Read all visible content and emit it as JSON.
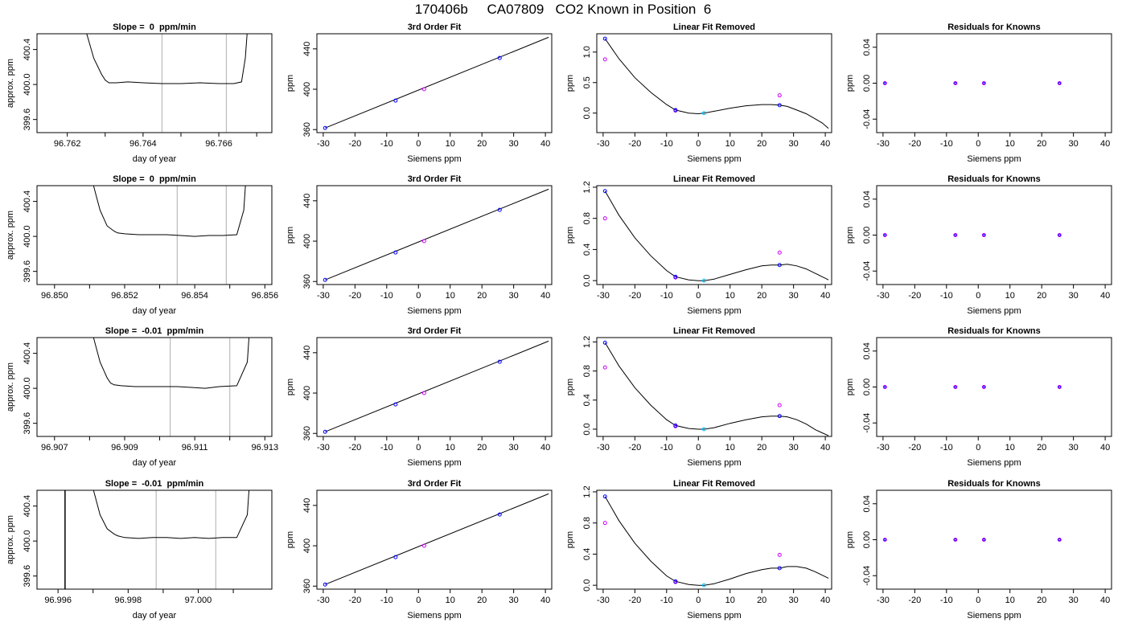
{
  "figure": {
    "title": "170406b     CA07809   CO2 Known in Position  6"
  },
  "colors": {
    "curve": "#000000",
    "known_point": "#0000ff",
    "raw_point": "#cc00ff",
    "center_point": "#00bfff",
    "marker_line": "#bbbbbb",
    "frame": "#000000"
  },
  "chart_data": [
    {
      "panel": "trace",
      "row": 1,
      "type": "line",
      "title": "Slope =  0  ppm/min",
      "xlabel": "day of year",
      "ylabel": "approx. ppm",
      "xlim": [
        96.7612,
        96.7674
      ],
      "ylim": [
        399.45,
        400.58
      ],
      "xticks": [
        "96.762",
        "96.764",
        "96.766"
      ],
      "yticks": [
        "399.6",
        "400.0",
        "400.4"
      ],
      "markers": [
        96.7645,
        96.7662
      ],
      "edge_line": null,
      "x": [
        96.7625,
        96.7627,
        96.7629,
        96.763,
        96.7631,
        96.7633,
        96.7636,
        96.764,
        96.7645,
        96.765,
        96.7655,
        96.766,
        96.7664,
        96.7666,
        96.7667,
        96.76675
      ],
      "y": [
        400.6,
        400.3,
        400.12,
        400.05,
        400.02,
        400.02,
        400.03,
        400.02,
        400.01,
        400.01,
        400.02,
        400.01,
        400.01,
        400.03,
        400.3,
        400.6
      ]
    },
    {
      "panel": "fit",
      "row": 1,
      "type": "line",
      "title": "3rd Order Fit",
      "xlabel": "Siemens ppm",
      "ylabel": "ppm",
      "xlim": [
        -32,
        42
      ],
      "ylim": [
        357,
        455
      ],
      "xticks": [
        "-30",
        "-20",
        "-10",
        "0",
        "10",
        "20",
        "30",
        "40"
      ],
      "yticks": [
        "360",
        "400",
        "440"
      ],
      "curve": {
        "x": [
          -29.4,
          41
        ],
        "y": [
          361.6,
          451.5
        ]
      },
      "points": {
        "x": [
          -29.4,
          -7.2,
          1.8,
          25.6
        ],
        "y": [
          361.6,
          388.8,
          400.0,
          431.0
        ]
      }
    },
    {
      "panel": "linear",
      "row": 1,
      "type": "line",
      "title": "Linear Fit Removed",
      "xlabel": "Siemens ppm",
      "ylabel": "ppm",
      "xlim": [
        -32,
        42
      ],
      "ylim": [
        -0.32,
        1.3
      ],
      "xticks": [
        "-30",
        "-20",
        "-10",
        "0",
        "10",
        "20",
        "30",
        "40"
      ],
      "yticks": [
        "0.0",
        "0.5",
        "1.0"
      ],
      "curve_x": [
        -29.4,
        -25,
        -20,
        -15,
        -10,
        -7.2,
        -3,
        0,
        1.8,
        5,
        10,
        15,
        20,
        23,
        25.6,
        28,
        31,
        34,
        37,
        39,
        41
      ],
      "curve_y": [
        1.22,
        0.89,
        0.58,
        0.34,
        0.14,
        0.05,
        0.0,
        -0.01,
        0.0,
        0.03,
        0.08,
        0.12,
        0.14,
        0.14,
        0.13,
        0.11,
        0.05,
        -0.01,
        -0.1,
        -0.16,
        -0.25
      ],
      "known_points": {
        "x": [
          -29.4,
          -7.2,
          25.6
        ],
        "y": [
          1.22,
          0.05,
          0.13
        ]
      },
      "center_point": {
        "x": [
          1.8
        ],
        "y": [
          0.0
        ]
      },
      "raw_points": {
        "x": [
          -29.4,
          -7.2,
          25.6
        ],
        "y": [
          0.88,
          0.04,
          0.29
        ]
      }
    },
    {
      "panel": "residuals",
      "row": 1,
      "type": "scatter",
      "title": "Residuals for Knowns",
      "xlabel": "Siemens ppm",
      "ylabel": "ppm",
      "xlim": [
        -32,
        42
      ],
      "ylim": [
        -0.055,
        0.055
      ],
      "xticks": [
        "-30",
        "-20",
        "-10",
        "0",
        "10",
        "20",
        "30",
        "40"
      ],
      "yticks": [
        "-0.04",
        "0.00",
        "0.04"
      ],
      "points": {
        "x": [
          -29.4,
          -7.2,
          1.8,
          25.6
        ],
        "y": [
          0,
          0,
          0,
          0
        ]
      }
    },
    {
      "panel": "trace",
      "row": 2,
      "type": "line",
      "title": "Slope =  0  ppm/min",
      "xlabel": "day of year",
      "ylabel": "approx. ppm",
      "xlim": [
        96.8495,
        96.8562
      ],
      "ylim": [
        399.45,
        400.58
      ],
      "xticks": [
        "96.850",
        "96.852",
        "96.854",
        "96.856"
      ],
      "yticks": [
        "399.6",
        "400.0",
        "400.4"
      ],
      "markers": [
        96.8535,
        96.8549
      ],
      "edge_line": null,
      "x": [
        96.8511,
        96.8513,
        96.8515,
        96.8517,
        96.8518,
        96.852,
        96.8524,
        96.8528,
        96.8532,
        96.8536,
        96.854,
        96.8544,
        96.8548,
        96.8552,
        96.8554,
        96.85545
      ],
      "y": [
        400.6,
        400.3,
        400.12,
        400.06,
        400.04,
        400.03,
        400.02,
        400.02,
        400.02,
        400.01,
        400.0,
        400.01,
        400.01,
        400.02,
        400.3,
        400.6
      ]
    },
    {
      "panel": "fit",
      "row": 2,
      "type": "line",
      "title": "3rd Order Fit",
      "xlabel": "Siemens ppm",
      "ylabel": "ppm",
      "xlim": [
        -32,
        42
      ],
      "ylim": [
        357,
        455
      ],
      "xticks": [
        "-30",
        "-20",
        "-10",
        "0",
        "10",
        "20",
        "30",
        "40"
      ],
      "yticks": [
        "360",
        "400",
        "440"
      ],
      "curve": {
        "x": [
          -29.4,
          41
        ],
        "y": [
          361.6,
          451.5
        ]
      },
      "points": {
        "x": [
          -29.4,
          -7.2,
          1.8,
          25.6
        ],
        "y": [
          361.6,
          388.8,
          400.0,
          431.0
        ]
      }
    },
    {
      "panel": "linear",
      "row": 2,
      "type": "line",
      "title": "Linear Fit Removed",
      "xlabel": "Siemens ppm",
      "ylabel": "ppm",
      "xlim": [
        -32,
        42
      ],
      "ylim": [
        -0.05,
        1.22
      ],
      "xticks": [
        "-30",
        "-20",
        "-10",
        "0",
        "10",
        "20",
        "30",
        "40"
      ],
      "yticks": [
        "0.0",
        "0.4",
        "0.8",
        "1.2"
      ],
      "curve_x": [
        -29.4,
        -25,
        -20,
        -15,
        -10,
        -7.2,
        -3,
        0,
        1.8,
        5,
        10,
        15,
        20,
        23,
        25.6,
        28,
        31,
        34,
        37,
        39,
        41
      ],
      "curve_y": [
        1.15,
        0.84,
        0.55,
        0.32,
        0.13,
        0.05,
        0.01,
        0.0,
        0.0,
        0.02,
        0.08,
        0.14,
        0.19,
        0.2,
        0.2,
        0.21,
        0.19,
        0.15,
        0.09,
        0.05,
        0.01
      ],
      "known_points": {
        "x": [
          -29.4,
          -7.2,
          25.6
        ],
        "y": [
          1.15,
          0.05,
          0.2
        ]
      },
      "center_point": {
        "x": [
          1.8
        ],
        "y": [
          0.0
        ]
      },
      "raw_points": {
        "x": [
          -29.4,
          -7.2,
          25.6
        ],
        "y": [
          0.8,
          0.04,
          0.36
        ]
      }
    },
    {
      "panel": "residuals",
      "row": 2,
      "type": "scatter",
      "title": "Residuals for Knowns",
      "xlabel": "Siemens ppm",
      "ylabel": "ppm",
      "xlim": [
        -32,
        42
      ],
      "ylim": [
        -0.055,
        0.055
      ],
      "xticks": [
        "-30",
        "-20",
        "-10",
        "0",
        "10",
        "20",
        "30",
        "40"
      ],
      "yticks": [
        "-0.04",
        "0.00",
        "0.04"
      ],
      "points": {
        "x": [
          -29.4,
          -7.2,
          1.8,
          25.6
        ],
        "y": [
          0,
          0,
          0,
          0
        ]
      }
    },
    {
      "panel": "trace",
      "row": 3,
      "type": "line",
      "title": "Slope =  -0.01  ppm/min",
      "xlabel": "day of year",
      "ylabel": "approx. ppm",
      "xlim": [
        96.9065,
        96.9132
      ],
      "ylim": [
        399.45,
        400.58
      ],
      "xticks": [
        "96.907",
        "96.909",
        "96.911",
        "96.913"
      ],
      "yticks": [
        "399.6",
        "400.0",
        "400.4"
      ],
      "markers": [
        96.9103,
        96.912
      ],
      "edge_line": null,
      "x": [
        96.9081,
        96.9083,
        96.9085,
        96.9086,
        96.9087,
        96.9089,
        96.9093,
        96.9097,
        96.9101,
        96.9105,
        96.9109,
        96.9113,
        96.9117,
        96.9122,
        96.9125,
        96.91255
      ],
      "y": [
        400.6,
        400.3,
        400.12,
        400.06,
        400.04,
        400.03,
        400.02,
        400.02,
        400.02,
        400.02,
        400.01,
        400.0,
        400.02,
        400.03,
        400.3,
        400.6
      ]
    },
    {
      "panel": "fit",
      "row": 3,
      "type": "line",
      "title": "3rd Order Fit",
      "xlabel": "Siemens ppm",
      "ylabel": "ppm",
      "xlim": [
        -32,
        42
      ],
      "ylim": [
        357,
        455
      ],
      "xticks": [
        "-30",
        "-20",
        "-10",
        "0",
        "10",
        "20",
        "30",
        "40"
      ],
      "yticks": [
        "360",
        "400",
        "440"
      ],
      "curve": {
        "x": [
          -29.4,
          41
        ],
        "y": [
          361.6,
          451.5
        ]
      },
      "points": {
        "x": [
          -29.4,
          -7.2,
          1.8,
          25.6
        ],
        "y": [
          361.6,
          388.8,
          400.0,
          431.0
        ]
      }
    },
    {
      "panel": "linear",
      "row": 3,
      "type": "line",
      "title": "Linear Fit Removed",
      "xlabel": "Siemens ppm",
      "ylabel": "ppm",
      "xlim": [
        -32,
        42
      ],
      "ylim": [
        -0.1,
        1.26
      ],
      "xticks": [
        "-30",
        "-20",
        "-10",
        "0",
        "10",
        "20",
        "30",
        "40"
      ],
      "yticks": [
        "0.0",
        "0.4",
        "0.8",
        "1.2"
      ],
      "curve_x": [
        -29.4,
        -25,
        -20,
        -15,
        -10,
        -7.2,
        -3,
        0,
        1.8,
        5,
        10,
        15,
        20,
        23,
        25.6,
        28,
        31,
        34,
        37,
        39,
        41
      ],
      "curve_y": [
        1.19,
        0.87,
        0.57,
        0.33,
        0.13,
        0.05,
        0.01,
        0.0,
        0.0,
        0.02,
        0.08,
        0.13,
        0.17,
        0.18,
        0.18,
        0.17,
        0.13,
        0.07,
        -0.01,
        -0.05,
        -0.09
      ],
      "known_points": {
        "x": [
          -29.4,
          -7.2,
          25.6
        ],
        "y": [
          1.19,
          0.05,
          0.18
        ]
      },
      "center_point": {
        "x": [
          1.8
        ],
        "y": [
          0.0
        ]
      },
      "raw_points": {
        "x": [
          -29.4,
          -7.2,
          25.6
        ],
        "y": [
          0.85,
          0.04,
          0.33
        ]
      }
    },
    {
      "panel": "residuals",
      "row": 3,
      "type": "scatter",
      "title": "Residuals for Knowns",
      "xlabel": "Siemens ppm",
      "ylabel": "ppm",
      "xlim": [
        -32,
        42
      ],
      "ylim": [
        -0.055,
        0.055
      ],
      "xticks": [
        "-30",
        "-20",
        "-10",
        "0",
        "10",
        "20",
        "30",
        "40"
      ],
      "yticks": [
        "-0.04",
        "0.00",
        "0.04"
      ],
      "points": {
        "x": [
          -29.4,
          -7.2,
          1.8,
          25.6
        ],
        "y": [
          0,
          0,
          0,
          0
        ]
      }
    },
    {
      "panel": "trace",
      "row": 4,
      "type": "line",
      "title": "Slope =  -0.01  ppm/min",
      "xlabel": "day of year",
      "ylabel": "approx. ppm",
      "xlim": [
        96.9954,
        97.0021
      ],
      "ylim": [
        399.45,
        400.58
      ],
      "xticks": [
        "96.996",
        "96.998",
        "97.000"
      ],
      "yticks": [
        "399.6",
        "400.0",
        "400.4"
      ],
      "markers": [
        96.9988,
        97.0005
      ],
      "edge_line": 96.9962,
      "x": [
        96.997,
        96.9972,
        96.9974,
        96.9976,
        96.9977,
        96.9979,
        96.9983,
        96.9987,
        96.9991,
        96.9995,
        96.9999,
        97.0003,
        97.0007,
        97.0011,
        97.0014,
        97.00145
      ],
      "y": [
        400.6,
        400.3,
        400.14,
        400.08,
        400.06,
        400.04,
        400.03,
        400.04,
        400.04,
        400.03,
        400.04,
        400.03,
        400.04,
        400.04,
        400.3,
        400.6
      ]
    },
    {
      "panel": "fit",
      "row": 4,
      "type": "line",
      "title": "3rd Order Fit",
      "xlabel": "Siemens ppm",
      "ylabel": "ppm",
      "xlim": [
        -32,
        42
      ],
      "ylim": [
        357,
        455
      ],
      "xticks": [
        "-30",
        "-20",
        "-10",
        "0",
        "10",
        "20",
        "30",
        "40"
      ],
      "yticks": [
        "360",
        "400",
        "440"
      ],
      "curve": {
        "x": [
          -29.4,
          41
        ],
        "y": [
          361.6,
          451.5
        ]
      },
      "points": {
        "x": [
          -29.4,
          -7.2,
          1.8,
          25.6
        ],
        "y": [
          361.6,
          388.8,
          400.0,
          431.0
        ]
      }
    },
    {
      "panel": "linear",
      "row": 4,
      "type": "line",
      "title": "Linear Fit Removed",
      "xlabel": "Siemens ppm",
      "ylabel": "ppm",
      "xlim": [
        -32,
        42
      ],
      "ylim": [
        -0.05,
        1.22
      ],
      "xticks": [
        "-30",
        "-20",
        "-10",
        "0",
        "10",
        "20",
        "30",
        "40"
      ],
      "yticks": [
        "0.0",
        "0.4",
        "0.8",
        "1.2"
      ],
      "curve_x": [
        -29.4,
        -25,
        -20,
        -15,
        -10,
        -7.2,
        -3,
        0,
        1.8,
        5,
        10,
        15,
        20,
        23,
        25.6,
        28,
        31,
        34,
        37,
        39,
        41
      ],
      "curve_y": [
        1.14,
        0.83,
        0.54,
        0.31,
        0.12,
        0.05,
        0.01,
        0.0,
        0.0,
        0.02,
        0.08,
        0.15,
        0.2,
        0.22,
        0.22,
        0.24,
        0.24,
        0.22,
        0.17,
        0.13,
        0.09
      ],
      "known_points": {
        "x": [
          -29.4,
          -7.2,
          25.6
        ],
        "y": [
          1.14,
          0.05,
          0.22
        ]
      },
      "center_point": {
        "x": [
          1.8
        ],
        "y": [
          0.0
        ]
      },
      "raw_points": {
        "x": [
          -29.4,
          -7.2,
          25.6
        ],
        "y": [
          0.8,
          0.04,
          0.39
        ]
      }
    },
    {
      "panel": "residuals",
      "row": 4,
      "type": "scatter",
      "title": "Residuals for Knowns",
      "xlabel": "Siemens ppm",
      "ylabel": "ppm",
      "xlim": [
        -32,
        42
      ],
      "ylim": [
        -0.055,
        0.055
      ],
      "xticks": [
        "-30",
        "-20",
        "-10",
        "0",
        "10",
        "20",
        "30",
        "40"
      ],
      "yticks": [
        "-0.04",
        "0.00",
        "0.04"
      ],
      "points": {
        "x": [
          -29.4,
          -7.2,
          1.8,
          25.6
        ],
        "y": [
          0,
          0,
          0,
          0
        ]
      }
    }
  ]
}
